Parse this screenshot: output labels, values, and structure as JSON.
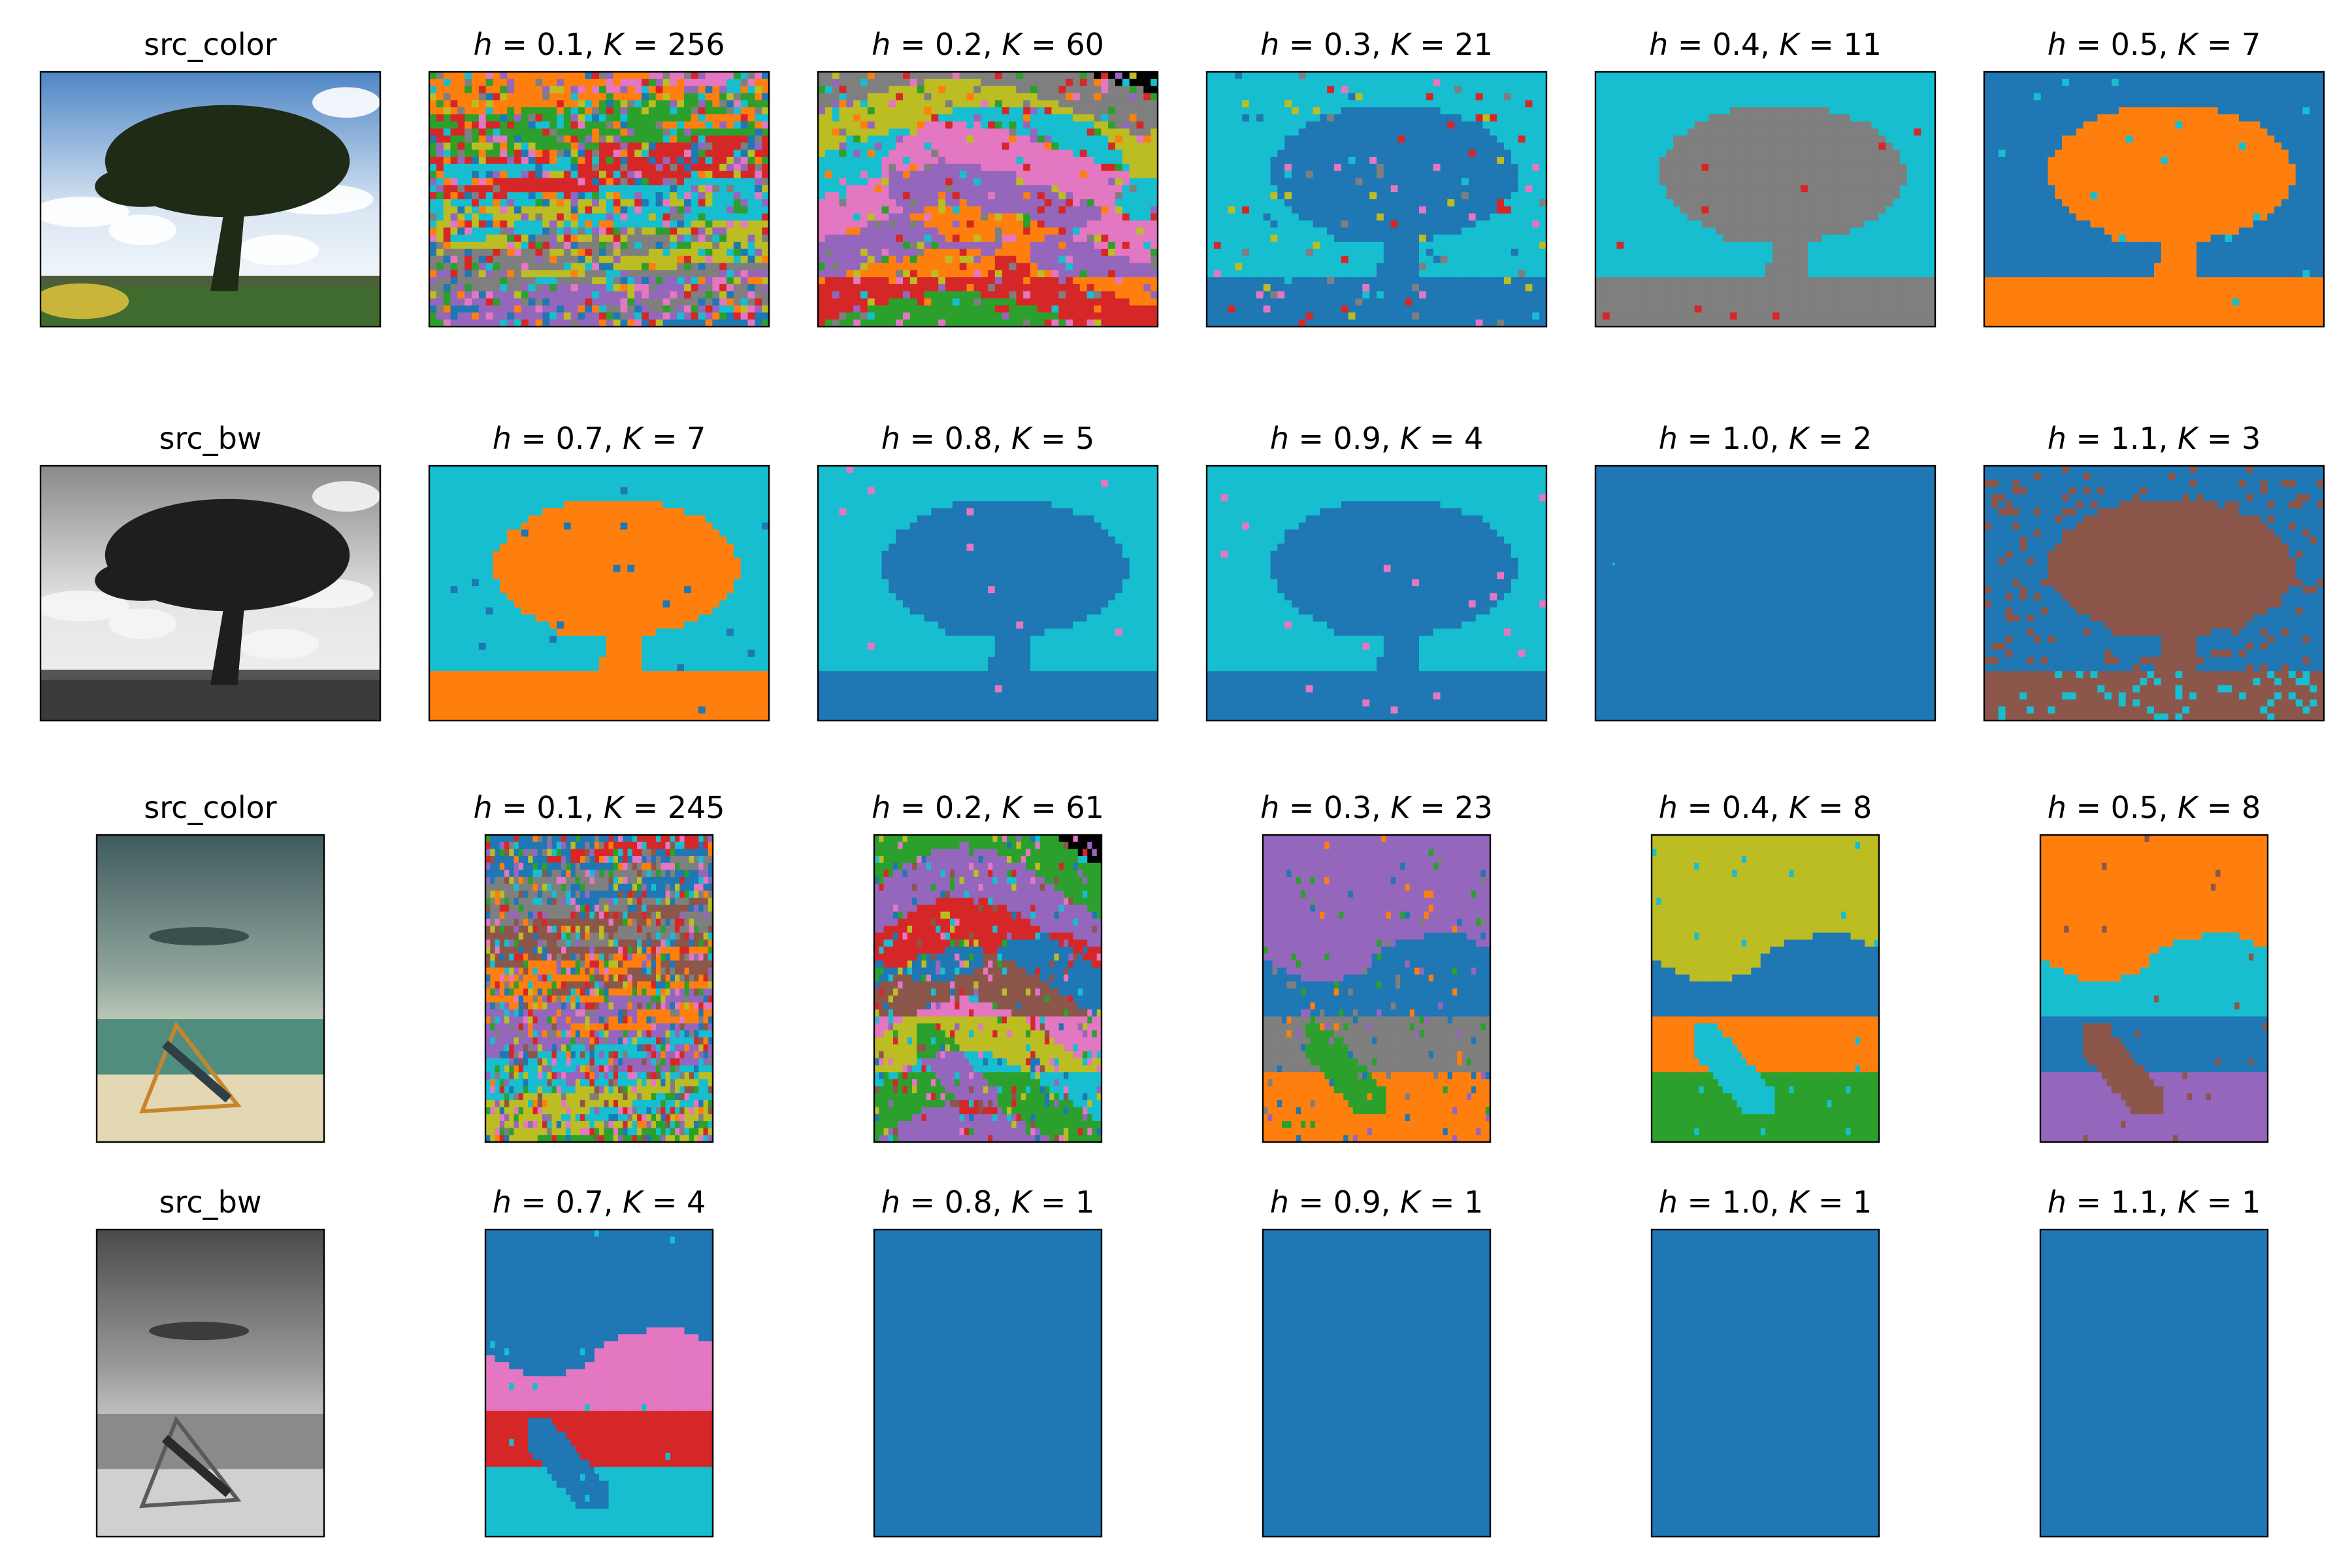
{
  "figure": {
    "rows": [
      {
        "source": "tree",
        "panels": [
          {
            "kind": "src",
            "label": "src_color",
            "mode": "color"
          },
          {
            "kind": "seg",
            "h": "0.1",
            "K": "256",
            "pattern": "fine",
            "colors": [
              "#e377c2",
              "#ff7f0e",
              "#2ca02c",
              "#d62728",
              "#17becf",
              "#bcbd22",
              "#7f7f7f",
              "#9467bd",
              "#1f77b4"
            ]
          },
          {
            "kind": "seg",
            "h": "0.2",
            "K": "60",
            "pattern": "medium",
            "colors": [
              "#7f7f7f",
              "#bcbd22",
              "#17becf",
              "#e377c2",
              "#9467bd",
              "#ff7f0e",
              "#d62728",
              "#2ca02c"
            ]
          },
          {
            "kind": "seg",
            "h": "0.3",
            "K": "21",
            "pattern": "coarse",
            "colors": [
              "#17becf",
              "#1f77b4",
              "#bcbd22",
              "#e377c2",
              "#d62728",
              "#7f7f7f"
            ]
          },
          {
            "kind": "seg",
            "h": "0.4",
            "K": "11",
            "pattern": "simple",
            "colors": [
              "#17becf",
              "#7f7f7f",
              "#7f7f7f",
              "#d62728"
            ]
          },
          {
            "kind": "seg",
            "h": "0.5",
            "K": "7",
            "pattern": "simple",
            "colors": [
              "#1f77b4",
              "#ff7f0e",
              "#ff7f0e",
              "#17becf"
            ]
          }
        ]
      },
      {
        "source": "tree",
        "panels": [
          {
            "kind": "src",
            "label": "src_bw",
            "mode": "gray"
          },
          {
            "kind": "seg",
            "h": "0.7",
            "K": "7",
            "pattern": "simple",
            "colors": [
              "#17becf",
              "#ff7f0e",
              "#ff7f0e",
              "#1f77b4"
            ]
          },
          {
            "kind": "seg",
            "h": "0.8",
            "K": "5",
            "pattern": "simple",
            "colors": [
              "#17becf",
              "#1f77b4",
              "#1f77b4",
              "#e377c2"
            ]
          },
          {
            "kind": "seg",
            "h": "0.9",
            "K": "4",
            "pattern": "simple",
            "colors": [
              "#17becf",
              "#1f77b4",
              "#1f77b4",
              "#e377c2"
            ]
          },
          {
            "kind": "seg",
            "h": "1.0",
            "K": "2",
            "pattern": "solid",
            "colors": [
              "#1f77b4"
            ]
          },
          {
            "kind": "seg",
            "h": "1.1",
            "K": "3",
            "pattern": "speckle",
            "colors": [
              "#1f77b4",
              "#8c564b",
              "#8c564b",
              "#17becf"
            ]
          }
        ]
      },
      {
        "source": "beach",
        "panels": [
          {
            "kind": "src",
            "label": "src_color",
            "mode": "color"
          },
          {
            "kind": "seg",
            "h": "0.1",
            "K": "245",
            "pattern": "fine",
            "colors": [
              "#d62728",
              "#1f77b4",
              "#7f7f7f",
              "#8c564b",
              "#ff7f0e",
              "#9467bd",
              "#17becf",
              "#bcbd22",
              "#2ca02c",
              "#e377c2"
            ]
          },
          {
            "kind": "seg",
            "h": "0.2",
            "K": "61",
            "pattern": "medium",
            "colors": [
              "#2ca02c",
              "#9467bd",
              "#d62728",
              "#1f77b4",
              "#8c564b",
              "#e377c2",
              "#bcbd22",
              "#17becf"
            ]
          },
          {
            "kind": "seg",
            "h": "0.3",
            "K": "23",
            "pattern": "coarse",
            "colors": [
              "#9467bd",
              "#1f77b4",
              "#7f7f7f",
              "#ff7f0e",
              "#2ca02c"
            ]
          },
          {
            "kind": "seg",
            "h": "0.4",
            "K": "8",
            "pattern": "simple",
            "colors": [
              "#bcbd22",
              "#1f77b4",
              "#ff7f0e",
              "#2ca02c",
              "#17becf"
            ]
          },
          {
            "kind": "seg",
            "h": "0.5",
            "K": "8",
            "pattern": "simple",
            "colors": [
              "#ff7f0e",
              "#17becf",
              "#1f77b4",
              "#9467bd",
              "#8c564b"
            ]
          }
        ]
      },
      {
        "source": "beach",
        "panels": [
          {
            "kind": "src",
            "label": "src_bw",
            "mode": "gray"
          },
          {
            "kind": "seg",
            "h": "0.7",
            "K": "4",
            "pattern": "simple",
            "colors": [
              "#1f77b4",
              "#e377c2",
              "#d62728",
              "#17becf"
            ]
          },
          {
            "kind": "seg",
            "h": "0.8",
            "K": "1",
            "pattern": "solid",
            "colors": [
              "#1f77b4"
            ]
          },
          {
            "kind": "seg",
            "h": "0.9",
            "K": "1",
            "pattern": "solid",
            "colors": [
              "#1f77b4"
            ]
          },
          {
            "kind": "seg",
            "h": "1.0",
            "K": "1",
            "pattern": "solid",
            "colors": [
              "#1f77b4"
            ]
          },
          {
            "kind": "seg",
            "h": "1.1",
            "K": "1",
            "pattern": "solid",
            "colors": [
              "#1f77b4"
            ]
          }
        ]
      }
    ]
  }
}
